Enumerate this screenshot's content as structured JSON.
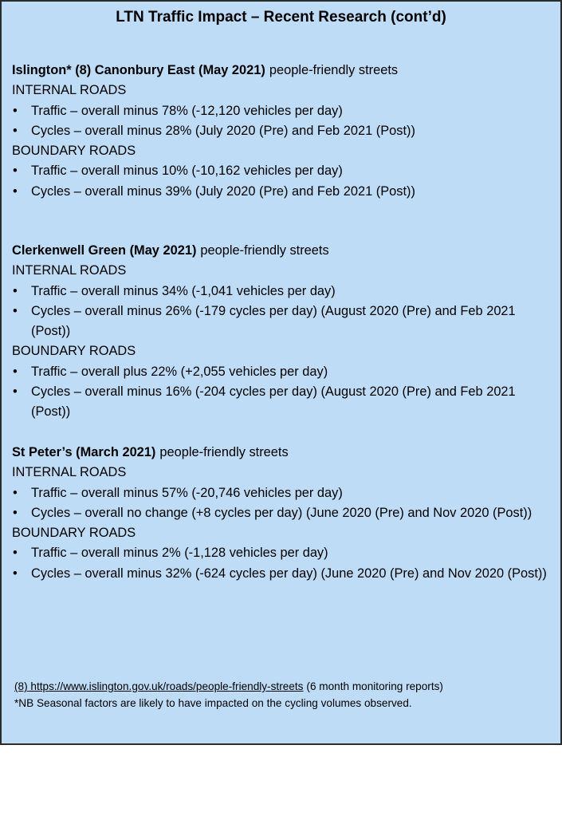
{
  "title": "LTN Traffic Impact – Recent Research (cont’d)",
  "sections": [
    {
      "heading": "Islington* (8) Canonbury East (May 2021)",
      "heading_rest": "people-friendly streets",
      "groups": [
        {
          "label": "INTERNAL ROADS",
          "items": [
            "Traffic –  overall minus 78% (-12,120 vehicles per day)",
            "Cycles – overall minus 28% (July 2020 (Pre) and Feb 2021 (Post))"
          ]
        },
        {
          "label": "BOUNDARY ROADS",
          "items": [
            "Traffic –  overall minus 10% (-10,162  vehicles per day)",
            "Cycles – overall minus 39% (July 2020 (Pre) and Feb 2021 (Post))"
          ]
        }
      ]
    },
    {
      "heading": "Clerkenwell Green (May 2021)",
      "heading_rest": "people-friendly streets",
      "groups": [
        {
          "label": "INTERNAL ROADS",
          "items": [
            "Traffic –  overall minus 34% (-1,041 vehicles per day)",
            "Cycles – overall minus 26% (-179 cycles per day) (August 2020 (Pre) and Feb 2021 (Post))"
          ]
        },
        {
          "label": "BOUNDARY ROADS",
          "items": [
            "Traffic –  overall plus 22% (+2,055 vehicles per day)",
            "Cycles – overall minus 16% (-204 cycles per day) (August 2020 (Pre) and Feb 2021 (Post))"
          ]
        }
      ]
    },
    {
      "heading": "St Peter’s (March 2021)",
      "heading_rest": "people-friendly streets",
      "groups": [
        {
          "label": "INTERNAL ROADS",
          "items": [
            "Traffic –  overall minus 57%  (-20,746 vehicles per day)",
            "Cycles – overall no change  (+8 cycles per day) (June 2020 (Pre) and Nov 2020 (Post))"
          ]
        },
        {
          "label": "BOUNDARY ROADS",
          "items": [
            "Traffic –  overall minus 2% (-1,128 vehicles per day)",
            "Cycles – overall minus 32% (-624 cycles per day) (June 2020 (Pre) and Nov 2020 (Post))"
          ]
        }
      ]
    }
  ],
  "footnote": {
    "link": "(8) https://www.islington.gov.uk/roads/people-friendly-streets",
    "rest": "(6 month monitoring reports)",
    "note": "*NB Seasonal factors are likely to have impacted on the cycling volumes observed."
  }
}
